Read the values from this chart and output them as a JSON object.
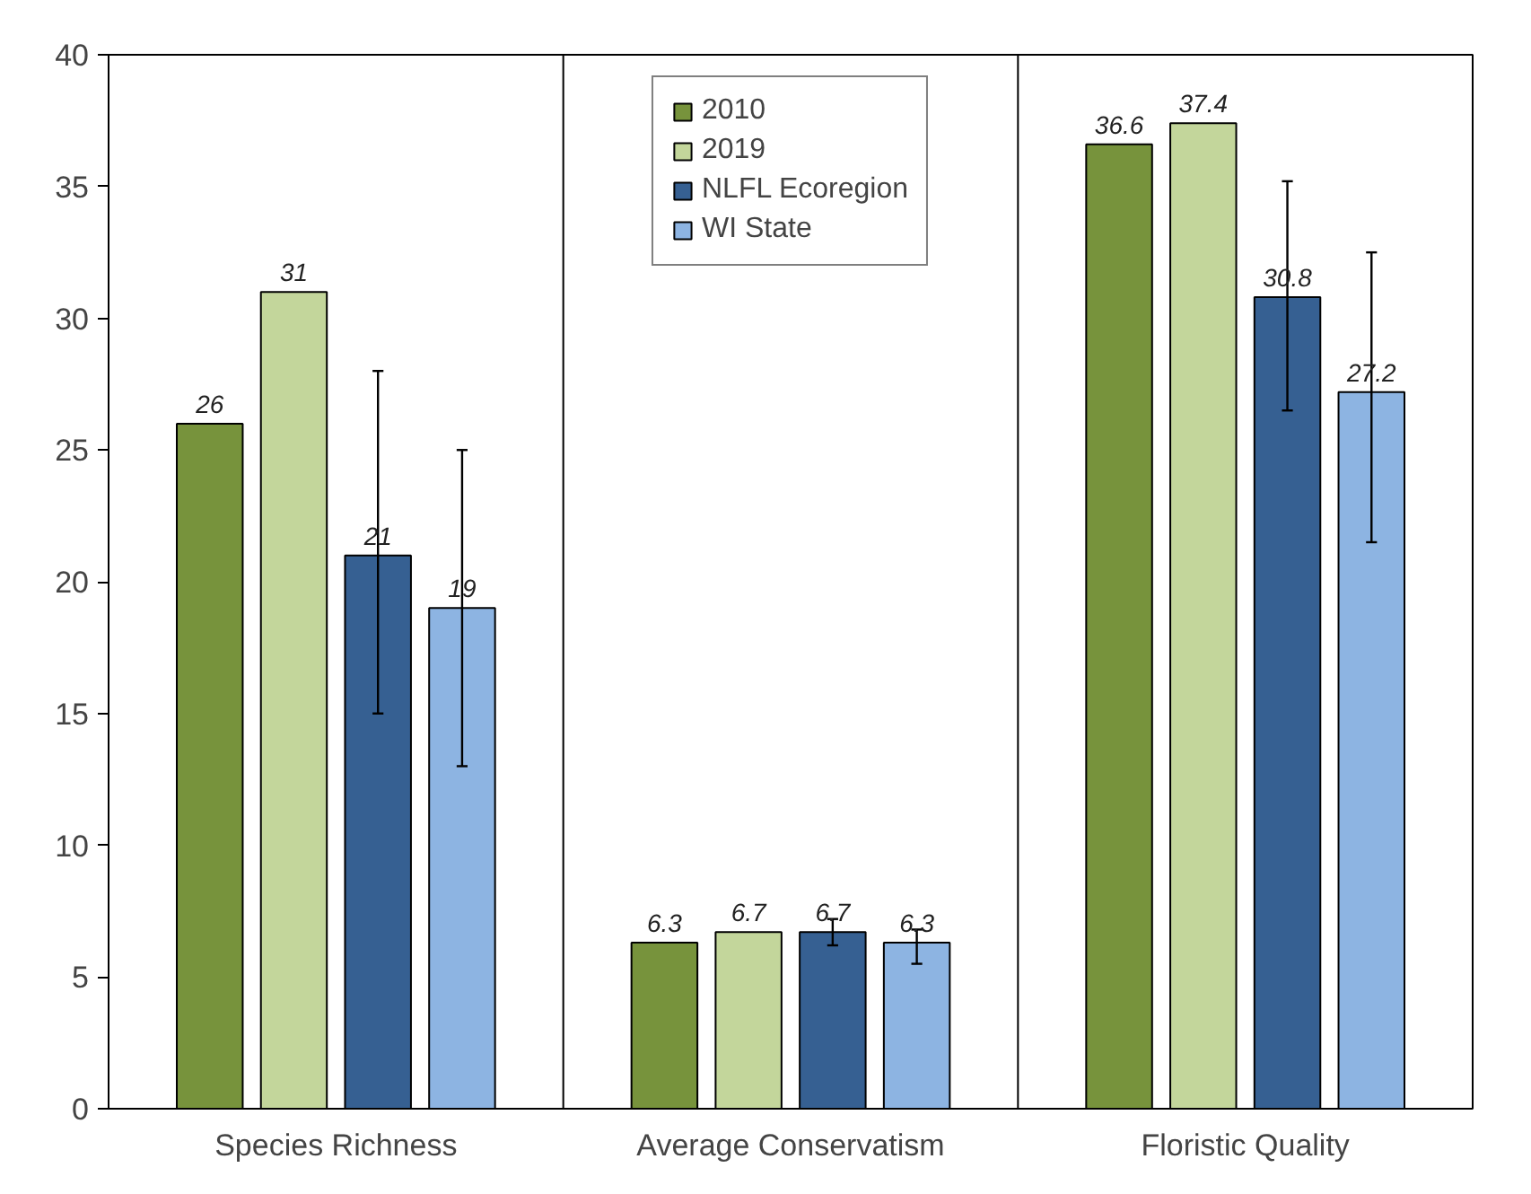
{
  "chart_data": {
    "type": "bar",
    "categories": [
      "Species Richness",
      "Average Conservatism",
      "Floristic Quality"
    ],
    "series": [
      {
        "name": "2010",
        "color": "#77933c",
        "values": [
          26,
          6.3,
          36.6
        ]
      },
      {
        "name": "2019",
        "color": "#c3d69b",
        "values": [
          31,
          6.7,
          37.4
        ]
      },
      {
        "name": "NLFL Ecoregion",
        "color": "#366092",
        "values": [
          21,
          6.7,
          30.8
        ],
        "errors": [
          [
            15,
            28
          ],
          [
            6.2,
            7.2
          ],
          [
            26.5,
            35.2
          ]
        ]
      },
      {
        "name": "WI State",
        "color": "#8db4e2",
        "values": [
          19,
          6.3,
          27.2
        ],
        "errors": [
          [
            13,
            25
          ],
          [
            5.5,
            6.8
          ],
          [
            21.5,
            32.5
          ]
        ]
      }
    ],
    "ylim": [
      0,
      40
    ],
    "yticks": [
      0,
      5,
      10,
      15,
      20,
      25,
      30,
      35,
      40
    ],
    "data_labels": true,
    "grid": "x",
    "legend": "top"
  }
}
